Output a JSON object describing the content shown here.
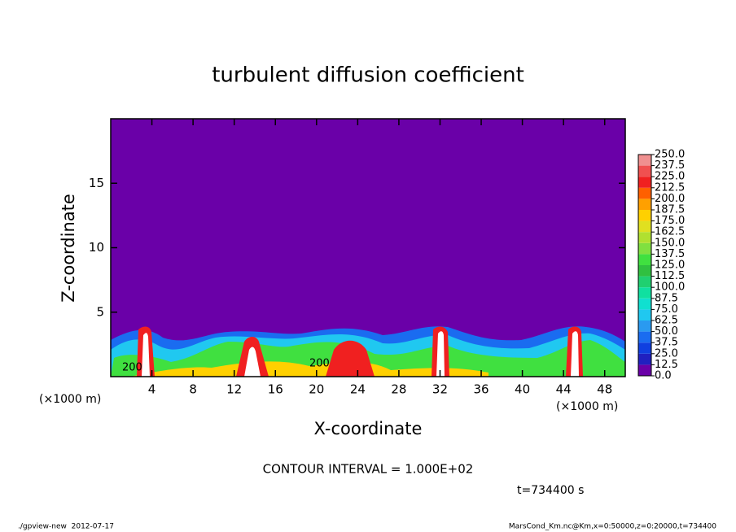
{
  "chart_data": {
    "type": "contour",
    "title": "turbulent diffusion coefficient",
    "xlabel": "X-coordinate",
    "ylabel": "Z-coordinate",
    "x_unit": "(×1000 m)",
    "xlim": [
      0,
      50
    ],
    "ylim": [
      0,
      20
    ],
    "xticks": [
      4,
      8,
      12,
      16,
      20,
      24,
      28,
      32,
      36,
      40,
      44,
      48
    ],
    "yticks": [
      5,
      10,
      15
    ],
    "contour_labels": [
      200,
      200
    ],
    "contour_interval": "CONTOUR INTERVAL = 1.000E+02",
    "time_label": "t=734400 s",
    "colorbar_levels": [
      {
        "value": 0,
        "label": "0.0"
      },
      {
        "value": 12.5,
        "label": "12.5"
      },
      {
        "value": 25,
        "label": "25.0"
      },
      {
        "value": 37.5,
        "label": "37.5"
      },
      {
        "value": 50,
        "label": "50.0"
      },
      {
        "value": 62.5,
        "label": "62.5"
      },
      {
        "value": 75,
        "label": "75.0"
      },
      {
        "value": 87.5,
        "label": "87.5"
      },
      {
        "value": 100,
        "label": "100.0"
      },
      {
        "value": 112.5,
        "label": "112.5"
      },
      {
        "value": 125,
        "label": "125.0"
      },
      {
        "value": 137.5,
        "label": "137.5"
      },
      {
        "value": 150,
        "label": "150.0"
      },
      {
        "value": 162.5,
        "label": "162.5"
      },
      {
        "value": 175,
        "label": "175.0"
      },
      {
        "value": 187.5,
        "label": "187.5"
      },
      {
        "value": 200,
        "label": "200.0"
      },
      {
        "value": 212.5,
        "label": "212.5"
      },
      {
        "value": 225,
        "label": "225.0"
      },
      {
        "value": 237.5,
        "label": "237.5"
      },
      {
        "value": 250,
        "label": "250.0"
      }
    ],
    "colorbar_colors": [
      "#6a00a8",
      "#2020c0",
      "#1040e0",
      "#1a6cf0",
      "#2a9af0",
      "#20c8f0",
      "#10e0d0",
      "#10e0a0",
      "#20d070",
      "#30c040",
      "#40e040",
      "#80e040",
      "#b0e030",
      "#e0e020",
      "#ffd000",
      "#ffa000",
      "#ff6000",
      "#f02020",
      "#f05050",
      "#f09090"
    ],
    "footer_left": "./gpview-new  2012-07-17",
    "footer_right": "MarsCond_Km.nc@Km,x=0:50000,z=0:20000,t=734400"
  }
}
